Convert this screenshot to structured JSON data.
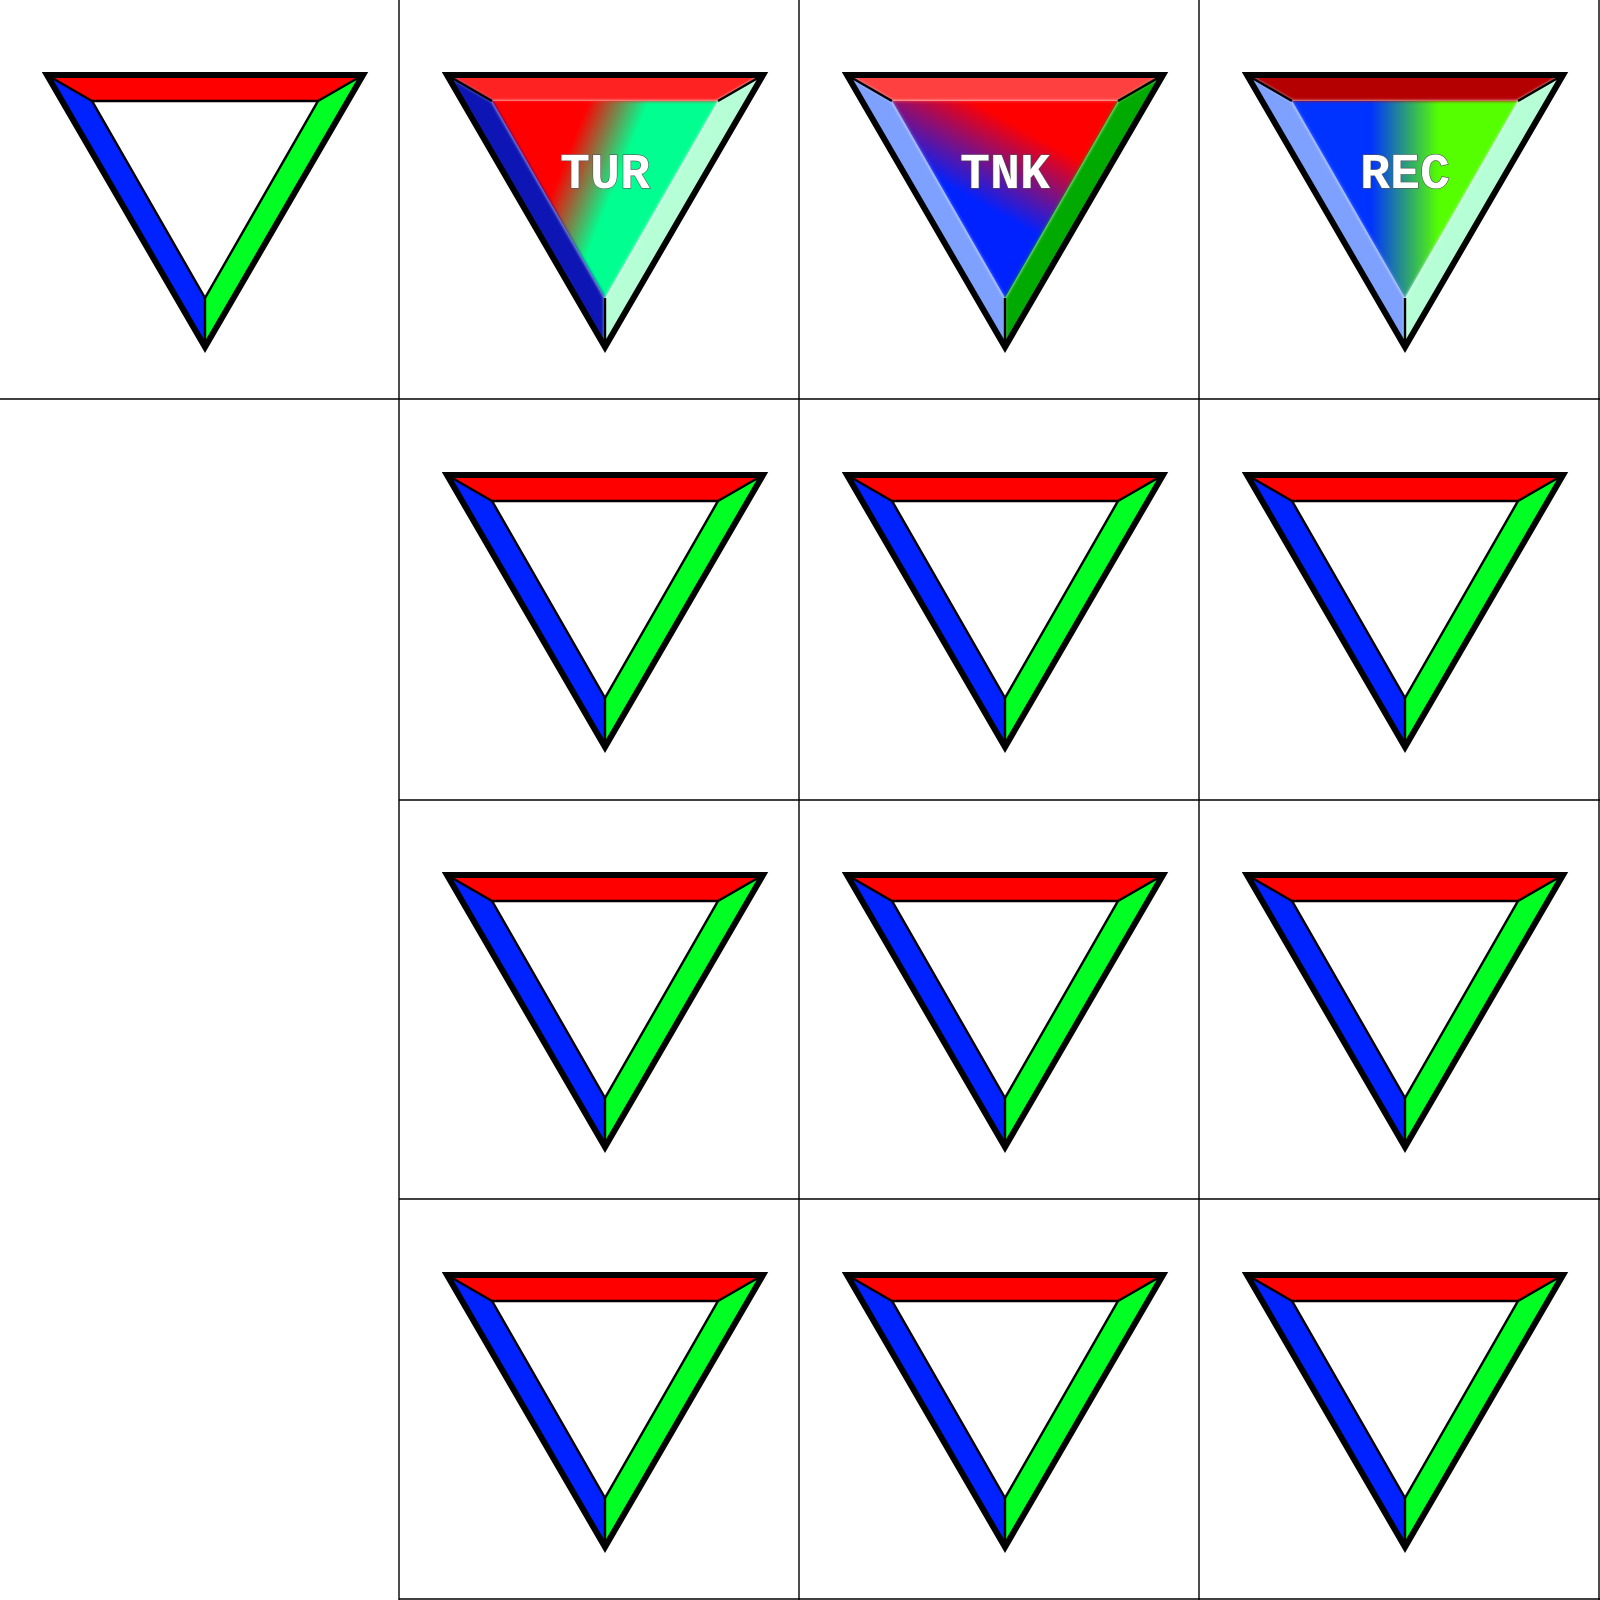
{
  "colors": {
    "top_edge": "#ff0000",
    "left_edge": "#0022ff",
    "right_edge": "#00ff22",
    "outline": "#000000",
    "background": "#ffffff"
  },
  "panels": [
    {
      "style": "plain",
      "label": ""
    },
    {
      "style": "filled",
      "label": "TUR",
      "top_edge": "#ff2020",
      "left_edge": "#0a14b4",
      "right_edge": "#b6ffd6",
      "fill_start": "#ff0000",
      "fill_end": "#00ff90"
    },
    {
      "style": "filled",
      "label": "TNK",
      "top_edge": "#ff4040",
      "left_edge": "#7ea0ff",
      "right_edge": "#00aa00",
      "fill_start": "#ff0000",
      "fill_end": "#0022ff"
    },
    {
      "style": "filled",
      "label": "REC",
      "top_edge": "#b40000",
      "left_edge": "#7ea0ff",
      "right_edge": "#b6ffd6",
      "fill_start": "#0033ff",
      "fill_end": "#55ff00"
    },
    {
      "style": "plain",
      "label": ""
    },
    {
      "style": "plain",
      "label": ""
    },
    {
      "style": "plain",
      "label": ""
    },
    {
      "style": "plain",
      "label": ""
    },
    {
      "style": "plain",
      "label": ""
    },
    {
      "style": "plain",
      "label": ""
    },
    {
      "style": "plain",
      "label": ""
    },
    {
      "style": "plain",
      "label": ""
    },
    {
      "style": "plain",
      "label": ""
    }
  ]
}
